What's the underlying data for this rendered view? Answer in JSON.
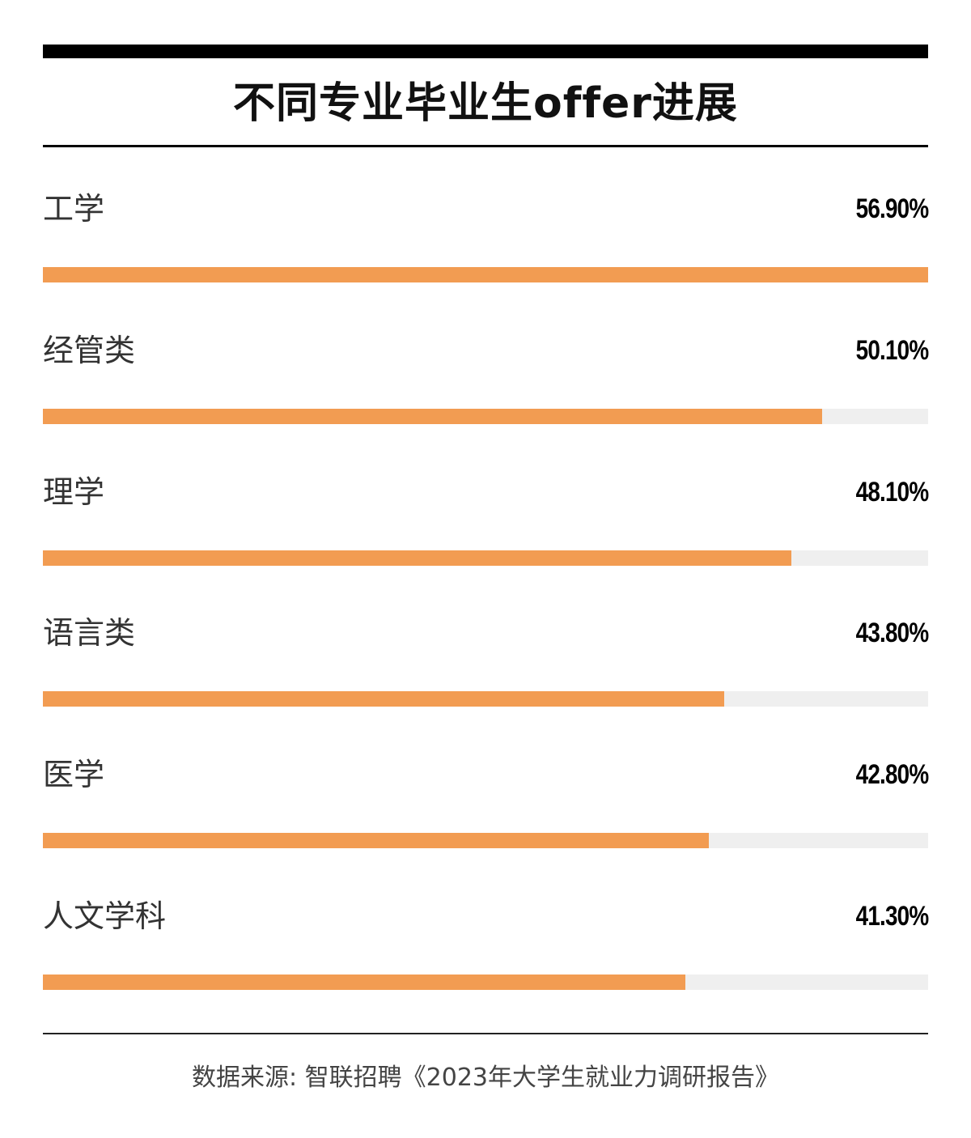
{
  "title": "不同专业毕业生offer进展",
  "colors": {
    "bar": "#f29c52",
    "track": "#efefef"
  },
  "chart_data": {
    "type": "bar",
    "orientation": "horizontal",
    "categories": [
      "工学",
      "经管类",
      "理学",
      "语言类",
      "医学",
      "人文学科"
    ],
    "values": [
      56.9,
      50.1,
      48.1,
      43.8,
      42.8,
      41.3
    ],
    "value_labels": [
      "56.90%",
      "50.10%",
      "48.10%",
      "43.80%",
      "42.80%",
      "41.30%"
    ],
    "title": "不同专业毕业生offer进展",
    "xlabel": "",
    "ylabel": "",
    "xlim": [
      0,
      56.9
    ],
    "grid": false,
    "legend": "none"
  },
  "source": "数据来源: 智联招聘《2023年大学生就业力调研报告》"
}
